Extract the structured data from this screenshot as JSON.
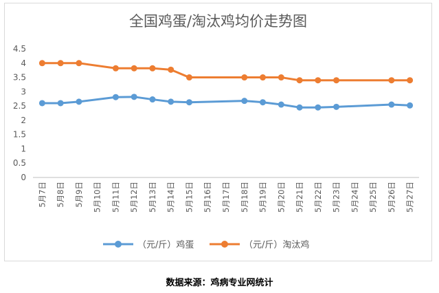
{
  "chart_data": {
    "type": "line",
    "title": "全国鸡蛋/淘汰鸡均价走势图",
    "categories": [
      "5月7日",
      "5月8日",
      "5月9日",
      "5月10日",
      "5月11日",
      "5月12日",
      "5月13日",
      "5月14日",
      "5月15日",
      "5月16日",
      "5月17日",
      "5月18日",
      "5月19日",
      "5月20日",
      "5月21日",
      "5月22日",
      "5月23日",
      "5月24日",
      "5月25日",
      "5月26日",
      "5月27日"
    ],
    "series": [
      {
        "name": "（元/斤）鸡蛋",
        "color": "#5b9bd5",
        "values": [
          2.6,
          2.6,
          2.65,
          null,
          2.81,
          2.82,
          2.73,
          2.65,
          2.63,
          null,
          null,
          2.68,
          2.63,
          2.55,
          2.45,
          2.45,
          2.47,
          null,
          null,
          2.55,
          2.52
        ]
      },
      {
        "name": "（元/斤）淘汰鸡",
        "color": "#ed7d31",
        "values": [
          4.0,
          4.0,
          4.0,
          null,
          3.82,
          3.82,
          3.82,
          3.77,
          3.5,
          null,
          null,
          3.5,
          3.5,
          3.5,
          3.4,
          3.4,
          3.4,
          null,
          null,
          3.4,
          3.4
        ]
      }
    ],
    "ylim": [
      0,
      4.5
    ],
    "yticks": [
      "0",
      "0.5",
      "1",
      "1.5",
      "2",
      "2.5",
      "3",
      "3.5",
      "4",
      "4.5"
    ],
    "grid": false,
    "legend": "bottom"
  },
  "source_note": "数据来源：鸡病专业网统计"
}
